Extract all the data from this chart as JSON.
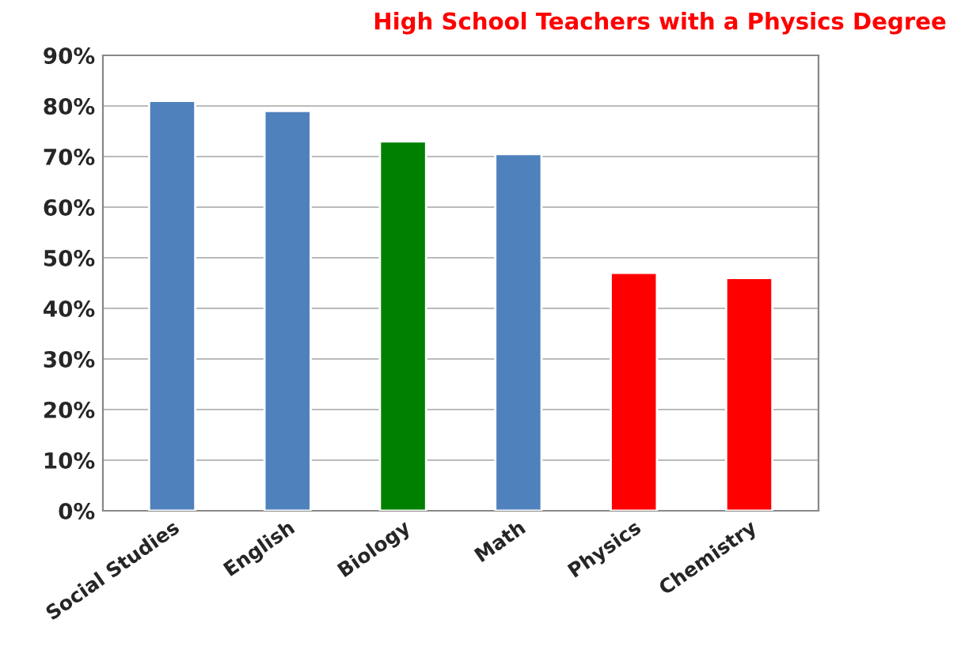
{
  "chart_data": {
    "type": "bar",
    "title": "High School Teachers with a Physics Degree",
    "categories": [
      "Social Studies",
      "English",
      "Biology",
      "Math",
      "Physics",
      "Chemistry"
    ],
    "values": [
      81,
      79,
      73,
      70.5,
      47,
      46
    ],
    "colors": [
      "#4f81bd",
      "#4f81bd",
      "#008000",
      "#4f81bd",
      "#ff0000",
      "#ff0000"
    ],
    "ylim": [
      0,
      90
    ],
    "yticks": [
      {
        "value": 0,
        "label": "0%"
      },
      {
        "value": 10,
        "label": "10%"
      },
      {
        "value": 20,
        "label": "20%"
      },
      {
        "value": 30,
        "label": "30%"
      },
      {
        "value": 40,
        "label": "40%"
      },
      {
        "value": 50,
        "label": "50%"
      },
      {
        "value": 60,
        "label": "60%"
      },
      {
        "value": 70,
        "label": "70%"
      },
      {
        "value": 80,
        "label": "80%"
      },
      {
        "value": 90,
        "label": "90%"
      }
    ],
    "grid": "y"
  }
}
